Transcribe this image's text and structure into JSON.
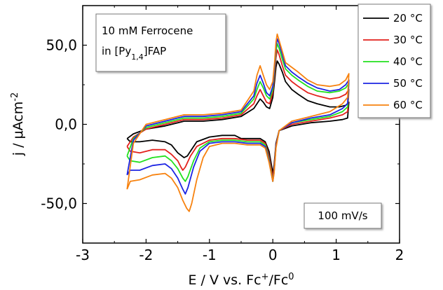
{
  "chart_data": {
    "type": "line",
    "title": "",
    "xlabel": "E / V vs. Fc⁺/Fc⁰",
    "ylabel": "j / μAcm⁻²",
    "xlabel_parts": {
      "main": "E / V vs. Fc",
      "sup1": "+",
      "mid": "/Fc",
      "sup2": "0"
    },
    "ylabel_parts": {
      "main": "j / μAcm",
      "sup": "-2"
    },
    "xlim": [
      -3,
      2
    ],
    "ylim": [
      -75,
      75
    ],
    "xticks": [
      -3,
      -2,
      -1,
      0,
      1,
      2
    ],
    "xtick_labels": [
      "-3",
      "-2",
      "-1",
      "0",
      "1",
      "2"
    ],
    "yticks": [
      50,
      0,
      -50
    ],
    "ytick_labels": [
      "50,0",
      "0,0",
      "-50,0"
    ],
    "grid": false,
    "legend_position": "top-right",
    "annotations": {
      "sample_line1": "10 mM Ferrocene",
      "sample_line2_main": "in [Py",
      "sample_line2_sub": "1,4",
      "sample_line2_end": "]FAP",
      "scan_rate": "100 mV/s"
    },
    "series": [
      {
        "name": "20 °C",
        "color": "#000000",
        "points": [
          [
            -2.3,
            -9
          ],
          [
            -2.25,
            -11
          ],
          [
            -2.1,
            -11
          ],
          [
            -1.9,
            -10
          ],
          [
            -1.7,
            -11
          ],
          [
            -1.6,
            -13
          ],
          [
            -1.5,
            -18
          ],
          [
            -1.4,
            -21
          ],
          [
            -1.35,
            -20
          ],
          [
            -1.3,
            -17
          ],
          [
            -1.2,
            -11
          ],
          [
            -1.0,
            -8
          ],
          [
            -0.8,
            -7
          ],
          [
            -0.6,
            -7
          ],
          [
            -0.5,
            -9
          ],
          [
            -0.4,
            -9
          ],
          [
            -0.3,
            -9
          ],
          [
            -0.2,
            -9
          ],
          [
            -0.12,
            -11
          ],
          [
            -0.06,
            -17
          ],
          [
            -0.02,
            -26
          ],
          [
            0.0,
            -31
          ],
          [
            0.02,
            -26
          ],
          [
            0.05,
            -12
          ],
          [
            0.1,
            -4
          ],
          [
            0.3,
            -1
          ],
          [
            0.6,
            1
          ],
          [
            0.9,
            2
          ],
          [
            1.1,
            3
          ],
          [
            1.18,
            4
          ],
          [
            1.2,
            14
          ],
          [
            1.15,
            12
          ],
          [
            1.05,
            11
          ],
          [
            0.9,
            11
          ],
          [
            0.7,
            13
          ],
          [
            0.55,
            15
          ],
          [
            0.4,
            19
          ],
          [
            0.3,
            22
          ],
          [
            0.2,
            27
          ],
          [
            0.15,
            33
          ],
          [
            0.1,
            38
          ],
          [
            0.07,
            40
          ],
          [
            0.05,
            36
          ],
          [
            0.03,
            28
          ],
          [
            0.0,
            17
          ],
          [
            -0.05,
            10
          ],
          [
            -0.1,
            11
          ],
          [
            -0.15,
            14
          ],
          [
            -0.2,
            16
          ],
          [
            -0.25,
            13
          ],
          [
            -0.3,
            10
          ],
          [
            -0.5,
            5
          ],
          [
            -0.8,
            3
          ],
          [
            -1.1,
            2
          ],
          [
            -1.4,
            2
          ],
          [
            -1.7,
            -1
          ],
          [
            -2.0,
            -3
          ],
          [
            -2.2,
            -6
          ],
          [
            -2.3,
            -9
          ]
        ]
      },
      {
        "name": "30 °C",
        "color": "#e3211c",
        "points": [
          [
            -2.3,
            -14
          ],
          [
            -2.25,
            -17
          ],
          [
            -2.1,
            -18
          ],
          [
            -1.9,
            -16
          ],
          [
            -1.7,
            -16
          ],
          [
            -1.6,
            -19
          ],
          [
            -1.5,
            -23
          ],
          [
            -1.45,
            -27
          ],
          [
            -1.42,
            -29
          ],
          [
            -1.38,
            -27
          ],
          [
            -1.3,
            -20
          ],
          [
            -1.2,
            -14
          ],
          [
            -1.0,
            -10
          ],
          [
            -0.8,
            -9
          ],
          [
            -0.6,
            -9
          ],
          [
            -0.4,
            -10
          ],
          [
            -0.2,
            -10
          ],
          [
            -0.12,
            -12
          ],
          [
            -0.06,
            -20
          ],
          [
            -0.02,
            -29
          ],
          [
            0.0,
            -34
          ],
          [
            0.02,
            -28
          ],
          [
            0.05,
            -13
          ],
          [
            0.1,
            -4
          ],
          [
            0.3,
            0
          ],
          [
            0.6,
            2
          ],
          [
            0.9,
            4
          ],
          [
            1.1,
            6
          ],
          [
            1.18,
            8
          ],
          [
            1.2,
            22
          ],
          [
            1.15,
            19
          ],
          [
            1.05,
            17
          ],
          [
            0.9,
            16
          ],
          [
            0.7,
            18
          ],
          [
            0.55,
            20
          ],
          [
            0.4,
            24
          ],
          [
            0.3,
            27
          ],
          [
            0.2,
            31
          ],
          [
            0.15,
            37
          ],
          [
            0.1,
            44
          ],
          [
            0.07,
            47
          ],
          [
            0.05,
            42
          ],
          [
            0.03,
            32
          ],
          [
            0.0,
            20
          ],
          [
            -0.05,
            13
          ],
          [
            -0.1,
            14
          ],
          [
            -0.15,
            18
          ],
          [
            -0.2,
            22
          ],
          [
            -0.25,
            18
          ],
          [
            -0.3,
            13
          ],
          [
            -0.5,
            6
          ],
          [
            -0.8,
            4
          ],
          [
            -1.1,
            3
          ],
          [
            -1.4,
            3
          ],
          [
            -1.7,
            0
          ],
          [
            -2.0,
            -3
          ],
          [
            -2.2,
            -8
          ],
          [
            -2.3,
            -14
          ]
        ]
      },
      {
        "name": "40 °C",
        "color": "#22e11e",
        "points": [
          [
            -2.3,
            -20
          ],
          [
            -2.25,
            -23
          ],
          [
            -2.1,
            -24
          ],
          [
            -1.9,
            -21
          ],
          [
            -1.7,
            -20
          ],
          [
            -1.6,
            -23
          ],
          [
            -1.5,
            -28
          ],
          [
            -1.42,
            -34
          ],
          [
            -1.38,
            -36
          ],
          [
            -1.34,
            -33
          ],
          [
            -1.25,
            -23
          ],
          [
            -1.15,
            -15
          ],
          [
            -1.0,
            -11
          ],
          [
            -0.8,
            -10
          ],
          [
            -0.6,
            -10
          ],
          [
            -0.4,
            -11
          ],
          [
            -0.2,
            -11
          ],
          [
            -0.12,
            -13
          ],
          [
            -0.06,
            -22
          ],
          [
            -0.02,
            -31
          ],
          [
            0.0,
            -36
          ],
          [
            0.02,
            -30
          ],
          [
            0.05,
            -14
          ],
          [
            0.1,
            -4
          ],
          [
            0.3,
            1
          ],
          [
            0.6,
            3
          ],
          [
            0.9,
            5
          ],
          [
            1.1,
            8
          ],
          [
            1.18,
            11
          ],
          [
            1.2,
            26
          ],
          [
            1.15,
            23
          ],
          [
            1.05,
            21
          ],
          [
            0.9,
            20
          ],
          [
            0.7,
            21
          ],
          [
            0.55,
            24
          ],
          [
            0.4,
            28
          ],
          [
            0.3,
            31
          ],
          [
            0.2,
            35
          ],
          [
            0.15,
            41
          ],
          [
            0.1,
            48
          ],
          [
            0.07,
            51
          ],
          [
            0.05,
            46
          ],
          [
            0.03,
            35
          ],
          [
            0.0,
            22
          ],
          [
            -0.05,
            16
          ],
          [
            -0.1,
            18
          ],
          [
            -0.15,
            23
          ],
          [
            -0.2,
            27
          ],
          [
            -0.25,
            22
          ],
          [
            -0.3,
            16
          ],
          [
            -0.5,
            7
          ],
          [
            -0.8,
            5
          ],
          [
            -1.1,
            4
          ],
          [
            -1.4,
            4
          ],
          [
            -1.7,
            1
          ],
          [
            -2.0,
            -2
          ],
          [
            -2.2,
            -9
          ],
          [
            -2.3,
            -20
          ]
        ]
      },
      {
        "name": "50 °C",
        "color": "#1c24e3",
        "points": [
          [
            -2.3,
            -32
          ],
          [
            -2.25,
            -29
          ],
          [
            -2.1,
            -29
          ],
          [
            -1.9,
            -26
          ],
          [
            -1.7,
            -25
          ],
          [
            -1.6,
            -28
          ],
          [
            -1.5,
            -34
          ],
          [
            -1.42,
            -41
          ],
          [
            -1.38,
            -44
          ],
          [
            -1.34,
            -40
          ],
          [
            -1.25,
            -27
          ],
          [
            -1.15,
            -17
          ],
          [
            -1.0,
            -12
          ],
          [
            -0.8,
            -11
          ],
          [
            -0.6,
            -11
          ],
          [
            -0.4,
            -12
          ],
          [
            -0.2,
            -12
          ],
          [
            -0.12,
            -14
          ],
          [
            -0.06,
            -23
          ],
          [
            -0.02,
            -32
          ],
          [
            0.0,
            -36
          ],
          [
            0.02,
            -30
          ],
          [
            0.05,
            -14
          ],
          [
            0.1,
            -4
          ],
          [
            0.3,
            1
          ],
          [
            0.6,
            4
          ],
          [
            0.9,
            6
          ],
          [
            1.1,
            10
          ],
          [
            1.18,
            13
          ],
          [
            1.2,
            28
          ],
          [
            1.15,
            25
          ],
          [
            1.05,
            22
          ],
          [
            0.9,
            21
          ],
          [
            0.7,
            23
          ],
          [
            0.55,
            26
          ],
          [
            0.4,
            30
          ],
          [
            0.3,
            33
          ],
          [
            0.2,
            37
          ],
          [
            0.15,
            44
          ],
          [
            0.1,
            51
          ],
          [
            0.07,
            54
          ],
          [
            0.05,
            49
          ],
          [
            0.03,
            37
          ],
          [
            0.0,
            24
          ],
          [
            -0.05,
            18
          ],
          [
            -0.1,
            20
          ],
          [
            -0.15,
            26
          ],
          [
            -0.2,
            31
          ],
          [
            -0.25,
            26
          ],
          [
            -0.3,
            18
          ],
          [
            -0.5,
            8
          ],
          [
            -0.8,
            6
          ],
          [
            -1.1,
            5
          ],
          [
            -1.4,
            5
          ],
          [
            -1.7,
            2
          ],
          [
            -2.0,
            -1
          ],
          [
            -2.2,
            -10
          ],
          [
            -2.3,
            -32
          ]
        ]
      },
      {
        "name": "60 °C",
        "color": "#f7820f",
        "points": [
          [
            -2.3,
            -41
          ],
          [
            -2.25,
            -36
          ],
          [
            -2.1,
            -35
          ],
          [
            -1.9,
            -32
          ],
          [
            -1.7,
            -31
          ],
          [
            -1.6,
            -34
          ],
          [
            -1.5,
            -40
          ],
          [
            -1.42,
            -48
          ],
          [
            -1.36,
            -53
          ],
          [
            -1.32,
            -55
          ],
          [
            -1.28,
            -50
          ],
          [
            -1.2,
            -35
          ],
          [
            -1.1,
            -21
          ],
          [
            -1.0,
            -14
          ],
          [
            -0.8,
            -12
          ],
          [
            -0.6,
            -12
          ],
          [
            -0.4,
            -13
          ],
          [
            -0.2,
            -13
          ],
          [
            -0.12,
            -15
          ],
          [
            -0.06,
            -24
          ],
          [
            -0.02,
            -32
          ],
          [
            0.0,
            -36
          ],
          [
            0.02,
            -31
          ],
          [
            0.05,
            -15
          ],
          [
            0.1,
            -4
          ],
          [
            0.3,
            2
          ],
          [
            0.6,
            5
          ],
          [
            0.9,
            8
          ],
          [
            1.1,
            13
          ],
          [
            1.18,
            17
          ],
          [
            1.2,
            32
          ],
          [
            1.15,
            28
          ],
          [
            1.05,
            25
          ],
          [
            0.9,
            24
          ],
          [
            0.7,
            25
          ],
          [
            0.55,
            28
          ],
          [
            0.4,
            33
          ],
          [
            0.3,
            36
          ],
          [
            0.2,
            39
          ],
          [
            0.15,
            46
          ],
          [
            0.1,
            53
          ],
          [
            0.07,
            57
          ],
          [
            0.05,
            52
          ],
          [
            0.03,
            40
          ],
          [
            0.0,
            27
          ],
          [
            -0.05,
            22
          ],
          [
            -0.1,
            25
          ],
          [
            -0.15,
            31
          ],
          [
            -0.2,
            37
          ],
          [
            -0.25,
            31
          ],
          [
            -0.3,
            21
          ],
          [
            -0.5,
            9
          ],
          [
            -0.8,
            7
          ],
          [
            -1.1,
            6
          ],
          [
            -1.4,
            6
          ],
          [
            -1.7,
            3
          ],
          [
            -2.0,
            0
          ],
          [
            -2.2,
            -12
          ],
          [
            -2.3,
            -41
          ]
        ]
      }
    ]
  }
}
